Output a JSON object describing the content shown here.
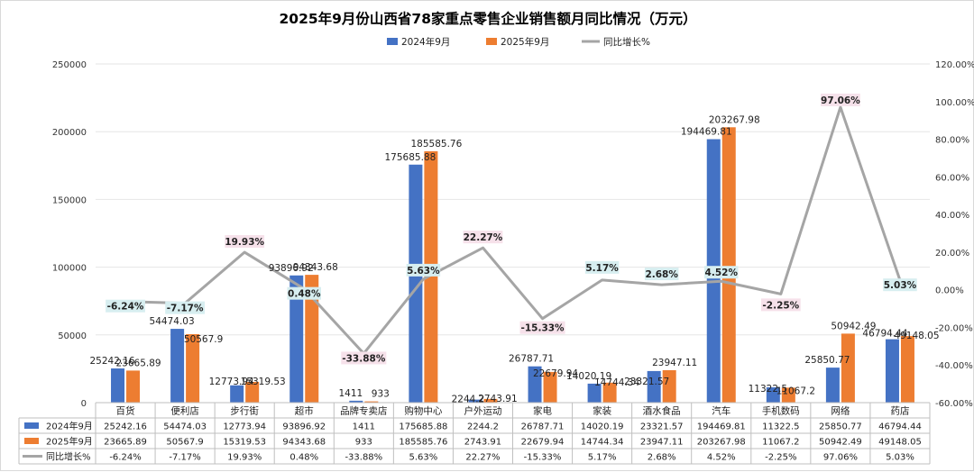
{
  "chart_data": {
    "type": "bar",
    "title": "2025年9月份山西省78家重点零售企业销售额月同比情况（万元）",
    "categories": [
      "百货",
      "便利店",
      "步行街",
      "超市",
      "品牌专卖店",
      "购物中心",
      "户外运动",
      "家电",
      "家装",
      "酒水食品",
      "汽车",
      "手机数码",
      "网络",
      "药店"
    ],
    "series": [
      {
        "name": "2024年9月",
        "color": "#4472c4",
        "values": [
          25242.16,
          54474.03,
          12773.94,
          93896.92,
          1411,
          175685.88,
          2244.2,
          26787.71,
          14020.19,
          23321.57,
          194469.81,
          11322.5,
          25850.77,
          46794.44
        ],
        "labels": [
          "25242.16",
          "54474.03",
          "12773.94",
          "93896.92",
          "1411",
          "175685.88",
          "2244.2",
          "26787.71",
          "14020.19",
          "23321.57",
          "194469.81",
          "11322.5",
          "25850.77",
          "46794.44"
        ]
      },
      {
        "name": "2025年9月",
        "color": "#ed7d31",
        "values": [
          23665.89,
          50567.9,
          15319.53,
          94343.68,
          933,
          185585.76,
          2743.91,
          22679.94,
          14744.34,
          23947.11,
          203267.98,
          11067.2,
          50942.49,
          49148.05
        ],
        "labels": [
          "23665.89",
          "50567.9",
          "15319.53",
          "94343.68",
          "933",
          "185585.76",
          "2743.91",
          "22679.94",
          "14744.34",
          "23947.11",
          "203267.98",
          "11067.2",
          "50942.49",
          "49148.05"
        ]
      }
    ],
    "line": {
      "name": "同比增长%",
      "color": "#a5a5a5",
      "values": [
        -6.24,
        -7.17,
        19.93,
        0.48,
        -33.88,
        5.63,
        22.27,
        -15.33,
        5.17,
        2.68,
        4.52,
        -2.25,
        97.06,
        5.03
      ],
      "labels": [
        "-6.24%",
        "-7.17%",
        "19.93%",
        "0.48%",
        "-33.88%",
        "5.63%",
        "22.27%",
        "-15.33%",
        "5.17%",
        "2.68%",
        "4.52%",
        "-2.25%",
        "97.06%",
        "5.03%"
      ]
    },
    "left_axis": {
      "min": 0,
      "max": 250000,
      "step": 50000,
      "ticks": [
        "0",
        "50000",
        "100000",
        "150000",
        "200000",
        "250000"
      ]
    },
    "right_axis": {
      "min": -60,
      "max": 120,
      "step": 20,
      "ticks": [
        "-60.00%",
        "-40.00%",
        "-20.00%",
        "0.00%",
        "20.00%",
        "40.00%",
        "60.00%",
        "80.00%",
        "100.00%",
        "120.00%"
      ]
    },
    "legend_position": "top"
  }
}
